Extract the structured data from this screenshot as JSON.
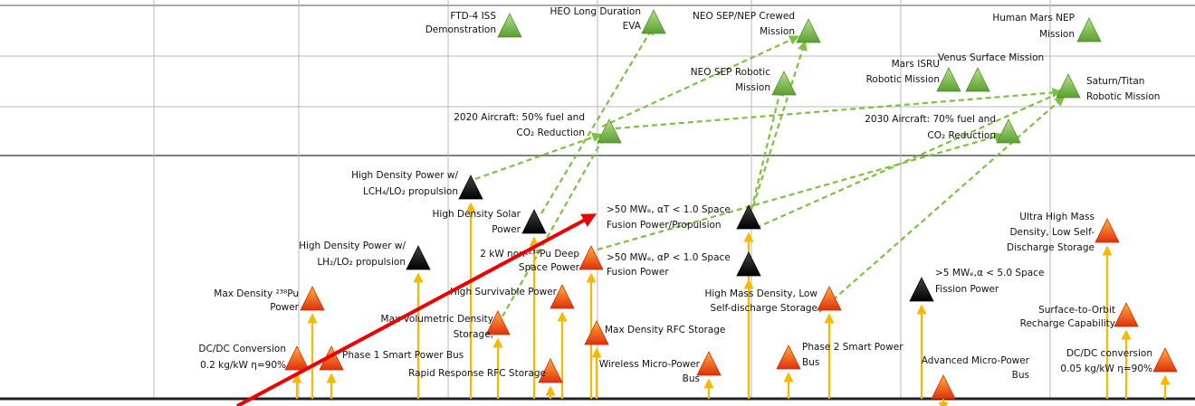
{
  "nodes": [
    {
      "lines": [
        "FTD-4 ISS",
        "Demonstration"
      ]
    },
    {
      "lines": [
        "HEO Long Duration",
        "EVA"
      ]
    },
    {
      "lines": [
        "NEO SEP/NEP Crewed",
        "Mission"
      ]
    },
    {
      "lines": [
        "Human Mars NEP",
        "Mission"
      ]
    },
    {
      "lines": [
        "NEO SEP Robotic",
        "Mission"
      ]
    },
    {
      "lines": [
        "Mars ISRU",
        "Robotic Mission"
      ]
    },
    {
      "lines": [
        "Venus Surface Mission"
      ]
    },
    {
      "lines": [
        "Saturn/Titan",
        "Robotic Mission"
      ]
    },
    {
      "lines": [
        "2020 Aircraft:  50% fuel and",
        "CO₂ Reduction"
      ]
    },
    {
      "lines": [
        "2030 Aircraft:  70% fuel and",
        "CO₂ Reduction"
      ]
    },
    {
      "lines": [
        "High Density Power w/",
        "LCH₄/LO₂ propulsion"
      ]
    },
    {
      "lines": [
        "High Density Solar",
        "Power"
      ]
    },
    {
      "lines": [
        ">50 MWₑ, αT < 1.0 Space",
        "Fusion Power/Propulsion"
      ]
    },
    {
      "lines": [
        "High Density Power w/",
        "LH₂/LO₂ propulsion"
      ]
    },
    {
      "lines": [
        ">50 MWₑ, αP < 1.0 Space",
        "Fusion Power"
      ]
    },
    {
      "lines": [
        ">5  MWₑ,α < 5.0 Space",
        "Fission Power"
      ]
    },
    {
      "lines": [
        "2 kW non-²³⁸Pu Deep",
        "Space  Power"
      ]
    },
    {
      "lines": [
        "Max Density ²³⁸Pu",
        "Power"
      ]
    },
    {
      "lines": [
        "High Survivable Power"
      ]
    },
    {
      "lines": [
        "Max Volumetric Density",
        "Storage,"
      ]
    },
    {
      "lines": [
        "High Mass Density, Low",
        "Self-discharge Storage"
      ]
    },
    {
      "lines": [
        "Ultra High Mass",
        "Density, Low Self-",
        "Discharge Storage"
      ]
    },
    {
      "lines": [
        "Surface-to-Orbit",
        "Recharge Capability"
      ]
    },
    {
      "lines": [
        "DC/DC Conversion",
        "0.2 kg/kW η=90%"
      ]
    },
    {
      "lines": [
        "Phase 1 Smart Power Bus"
      ]
    },
    {
      "lines": [
        "Max Density RFC Storage"
      ]
    },
    {
      "lines": [
        "Rapid Response RFC Storage"
      ]
    },
    {
      "lines": [
        "Wireless Micro-Power",
        "Bus"
      ]
    },
    {
      "lines": [
        "Phase 2 Smart Power",
        "Bus"
      ]
    },
    {
      "lines": [
        "Advanced Micro-Power",
        "Bus"
      ]
    },
    {
      "lines": [
        "DC/DC conversion",
        "0.05 kg/kW η=90%"
      ]
    }
  ]
}
